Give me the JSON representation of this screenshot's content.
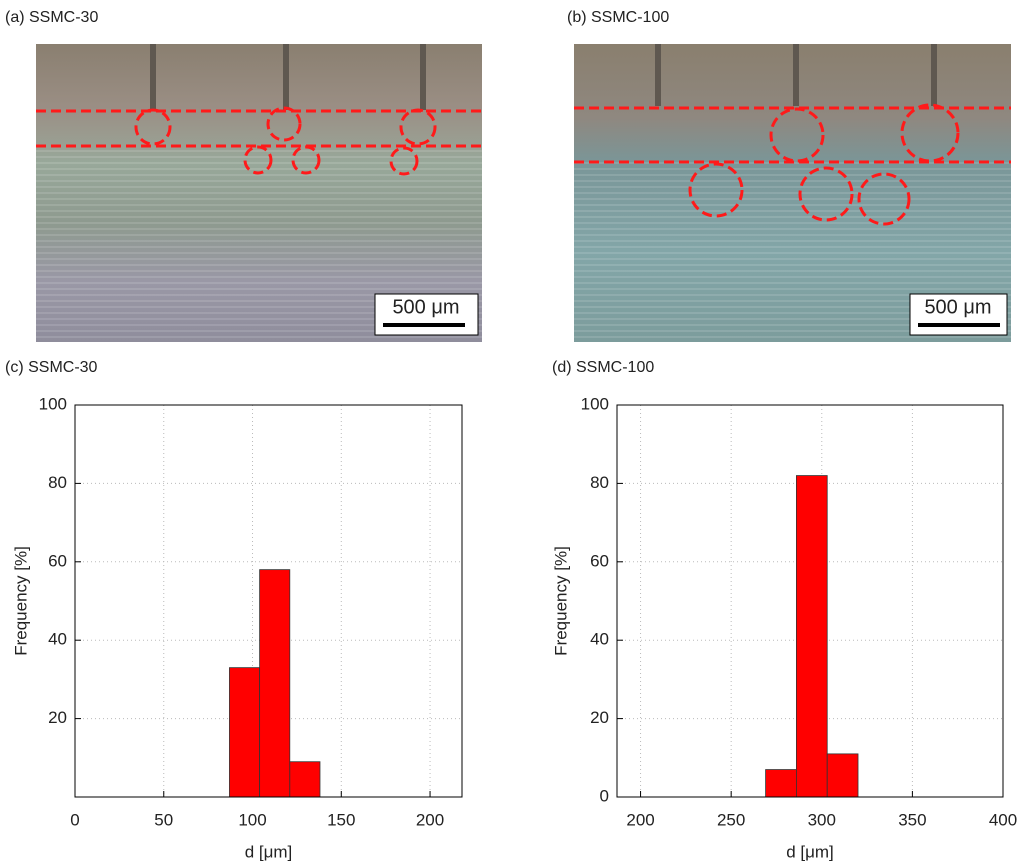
{
  "images": [
    {
      "label": "(a) SSMC-30",
      "scale_bar": "500 μm"
    },
    {
      "label": "(b) SSMC-100",
      "scale_bar": "500 μm"
    }
  ],
  "chart_data": [
    {
      "type": "histogram",
      "title": "(c) SSMC-30",
      "x_label": "d [μm]",
      "y_label": "Frequency [%]",
      "bins": [
        87,
        104,
        121,
        138
      ],
      "values": [
        33,
        58,
        9
      ],
      "color": "#ff0000",
      "xlim": [
        0,
        218
      ],
      "xticks": [
        0,
        50,
        100,
        150,
        200
      ],
      "ylim": [
        0,
        100
      ],
      "yticks": [
        20,
        40,
        60,
        80,
        100
      ],
      "grid": true
    },
    {
      "type": "histogram",
      "title": "(d) SSMC-100",
      "x_label": "d [μm]",
      "y_label": "Frequency [%]",
      "bins": [
        269,
        286,
        303,
        320
      ],
      "values": [
        7,
        82,
        11
      ],
      "color": "#ff0000",
      "xlim": [
        187,
        400
      ],
      "xticks": [
        200,
        250,
        300,
        350,
        400
      ],
      "ylim": [
        0,
        100
      ],
      "yticks": [
        0,
        20,
        40,
        60,
        80,
        100
      ],
      "grid": true
    }
  ]
}
